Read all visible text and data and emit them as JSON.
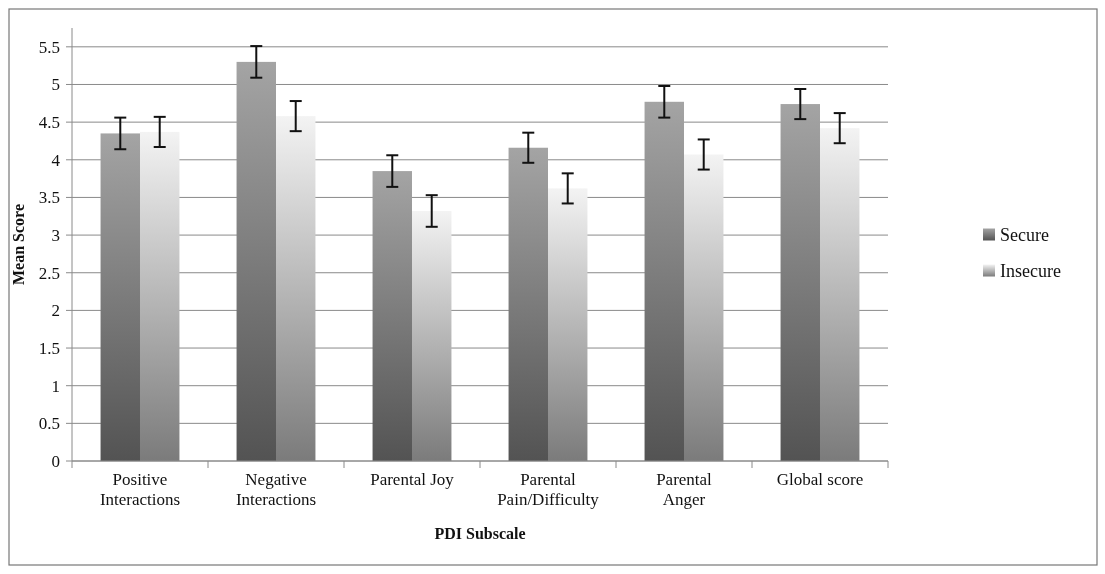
{
  "chart_data": {
    "type": "bar",
    "xlabel": "PDI Subscale",
    "ylabel": "Mean Score",
    "categories": [
      "Positive Interactions",
      "Negative Interactions",
      "Parental Joy",
      "Parental Pain/Difficulty",
      "Parental Anger",
      "Global score"
    ],
    "series": [
      {
        "name": "Secure",
        "color": "#808080",
        "values": [
          4.35,
          5.3,
          3.85,
          4.16,
          4.77,
          4.74
        ],
        "errors": [
          0.21,
          0.21,
          0.21,
          0.2,
          0.21,
          0.2
        ]
      },
      {
        "name": "Insecure",
        "color": "#bdbdbd",
        "values": [
          4.37,
          4.58,
          3.32,
          3.62,
          4.07,
          4.42
        ],
        "errors": [
          0.2,
          0.2,
          0.21,
          0.2,
          0.2,
          0.2
        ]
      }
    ],
    "ylim": [
      0,
      5.75
    ],
    "yticks": [
      0,
      0.5,
      1,
      1.5,
      2,
      2.5,
      3,
      3.5,
      4,
      4.5,
      5,
      5.5
    ],
    "grid": "y",
    "legend": "right"
  }
}
